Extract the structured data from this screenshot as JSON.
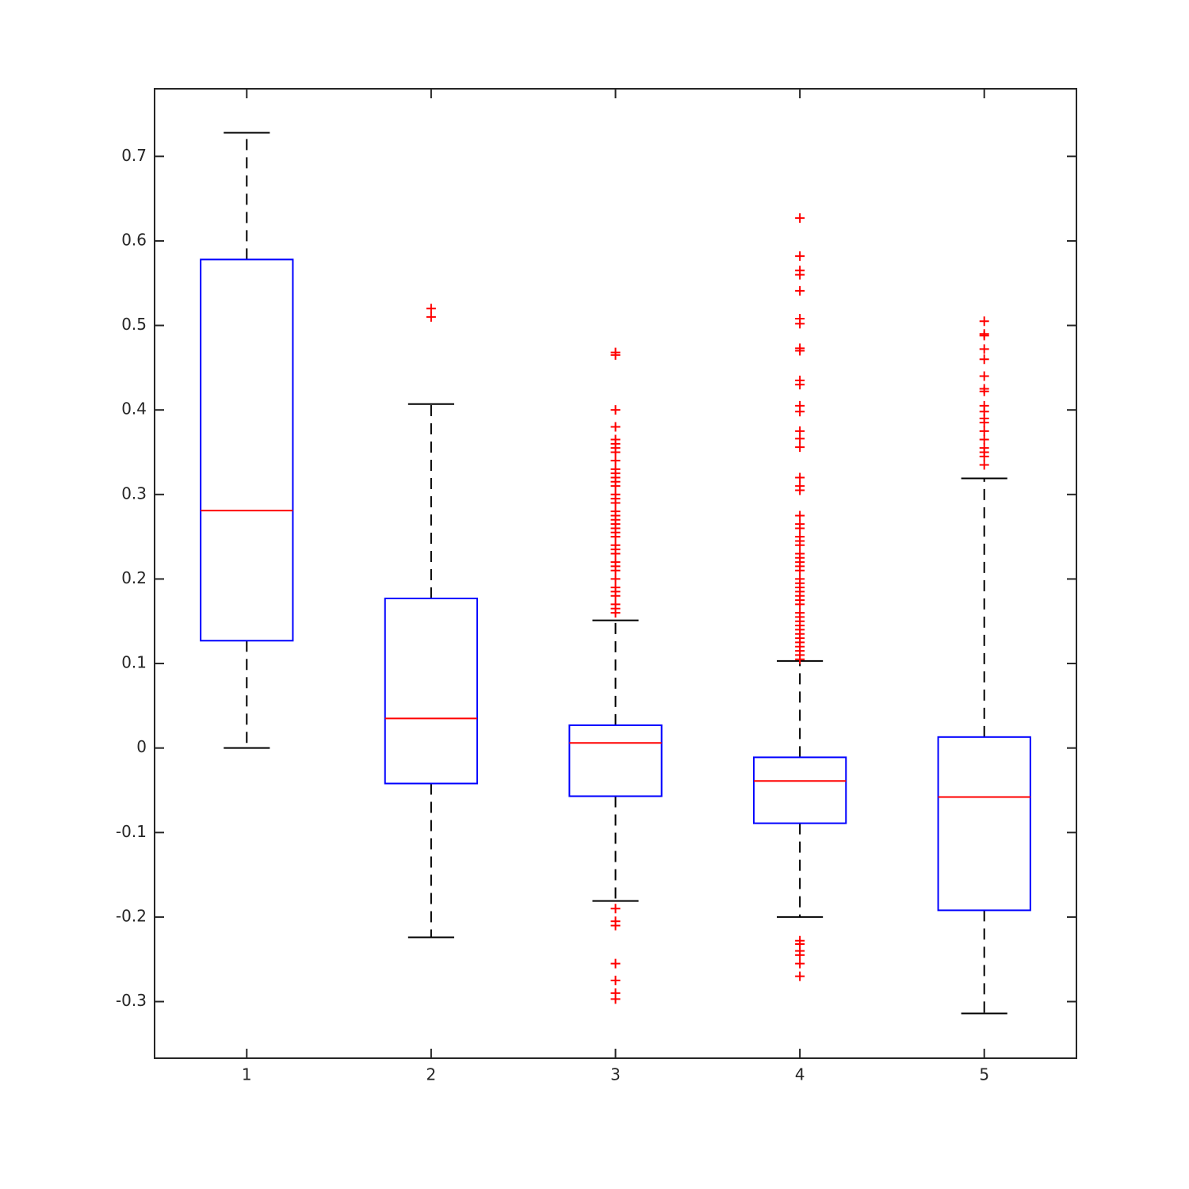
{
  "chart_data": {
    "type": "box",
    "categories": [
      "1",
      "2",
      "3",
      "4",
      "5"
    ],
    "boxes": [
      {
        "whisker_low": 0,
        "q1": 0.127,
        "median": 0.281,
        "q3": 0.578,
        "whisker_high": 0.728,
        "outliers": []
      },
      {
        "whisker_low": -0.224,
        "q1": -0.042,
        "median": 0.035,
        "q3": 0.177,
        "whisker_high": 0.407,
        "outliers": [
          0.52,
          0.51
        ]
      },
      {
        "whisker_low": -0.181,
        "q1": -0.057,
        "median": 0.006,
        "q3": 0.027,
        "whisker_high": 0.151,
        "outliers": [
          0.16,
          0.165,
          0.17,
          0.18,
          0.185,
          0.19,
          0.2,
          0.21,
          0.215,
          0.22,
          0.23,
          0.235,
          0.24,
          0.25,
          0.255,
          0.26,
          0.265,
          0.27,
          0.275,
          0.28,
          0.29,
          0.295,
          0.3,
          0.31,
          0.315,
          0.32,
          0.325,
          0.33,
          0.34,
          0.35,
          0.355,
          0.36,
          0.365,
          0.38,
          0.4,
          0.465,
          0.468,
          -0.19,
          -0.205,
          -0.21,
          -0.255,
          -0.275,
          -0.29,
          -0.297
        ]
      },
      {
        "whisker_low": -0.2,
        "q1": -0.089,
        "median": -0.039,
        "q3": -0.011,
        "whisker_high": 0.103,
        "outliers": [
          0.105,
          0.11,
          0.115,
          0.12,
          0.125,
          0.13,
          0.135,
          0.14,
          0.145,
          0.15,
          0.155,
          0.16,
          0.17,
          0.175,
          0.18,
          0.185,
          0.19,
          0.195,
          0.2,
          0.21,
          0.215,
          0.22,
          0.225,
          0.23,
          0.24,
          0.245,
          0.25,
          0.26,
          0.265,
          0.275,
          0.305,
          0.31,
          0.32,
          0.356,
          0.366,
          0.375,
          0.398,
          0.405,
          0.43,
          0.435,
          0.47,
          0.473,
          0.502,
          0.508,
          0.541,
          0.56,
          0.565,
          0.582,
          0.627,
          -0.228,
          -0.232,
          -0.24,
          -0.245,
          -0.255,
          -0.27
        ]
      },
      {
        "whisker_low": -0.314,
        "q1": -0.192,
        "median": -0.058,
        "q3": 0.013,
        "whisker_high": 0.319,
        "outliers": [
          0.335,
          0.345,
          0.35,
          0.355,
          0.365,
          0.375,
          0.385,
          0.39,
          0.398,
          0.405,
          0.422,
          0.425,
          0.44,
          0.46,
          0.472,
          0.488,
          0.49,
          0.505
        ]
      }
    ],
    "box_color": "#0000ff",
    "median_color": "#ff0000",
    "whisker_color": "#000000",
    "outlier_color": "#ff0000",
    "xlim": [
      0.5,
      5.5
    ],
    "ylim": [
      -0.367,
      0.78
    ],
    "yticks": [
      -0.3,
      -0.2,
      -0.1,
      0,
      0.1,
      0.2,
      0.3,
      0.4,
      0.5,
      0.6,
      0.7
    ],
    "grid": false
  }
}
